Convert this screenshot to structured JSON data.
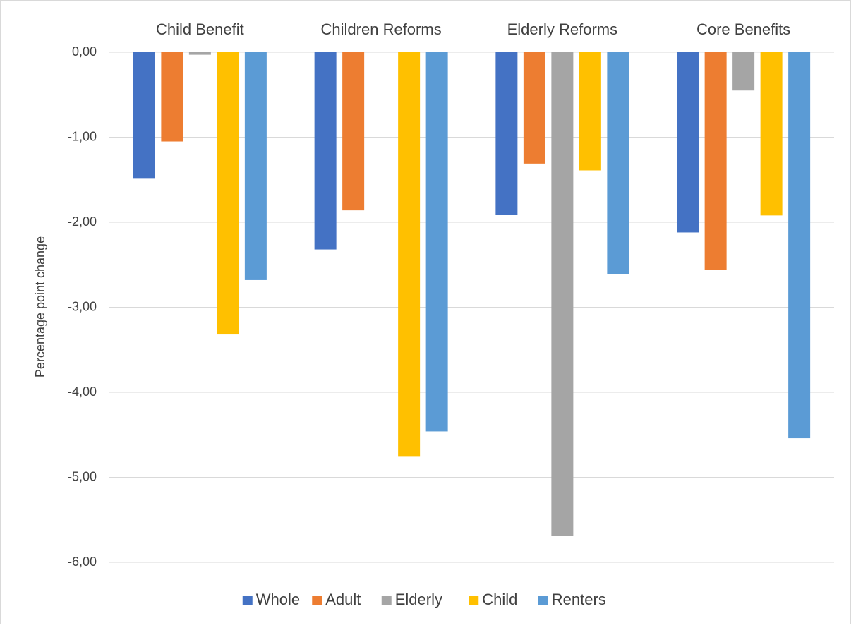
{
  "chart_data": {
    "type": "bar",
    "y_label": "Percentage point change",
    "categories": [
      "Child Benefit",
      "Children Reforms",
      "Elderly Reforms",
      "Core Benefits"
    ],
    "series": [
      {
        "name": "Whole",
        "color": "#4472c4",
        "values": [
          -1.48,
          -2.32,
          -1.91,
          -2.12
        ]
      },
      {
        "name": "Adult",
        "color": "#ed7d31",
        "values": [
          -1.05,
          -1.86,
          -1.31,
          -2.56
        ]
      },
      {
        "name": "Elderly",
        "color": "#a5a5a5",
        "values": [
          -0.03,
          0,
          -5.69,
          -0.45
        ]
      },
      {
        "name": "Child",
        "color": "#ffc000",
        "values": [
          -3.32,
          -4.75,
          -1.39,
          -1.92
        ]
      },
      {
        "name": "Renters",
        "color": "#5b9bd5",
        "values": [
          -2.68,
          -4.46,
          -2.61,
          -4.54
        ]
      }
    ],
    "ylim": [
      -6,
      0
    ],
    "yticks": [
      {
        "value": 0,
        "label": "0,00"
      },
      {
        "value": -1,
        "label": "-1,00"
      },
      {
        "value": -2,
        "label": "-2,00"
      },
      {
        "value": -3,
        "label": "-3,00"
      },
      {
        "value": -4,
        "label": "-4,00"
      },
      {
        "value": -5,
        "label": "-5,00"
      },
      {
        "value": -6,
        "label": "-6,00"
      }
    ],
    "grid": true,
    "legend": "bottom"
  }
}
